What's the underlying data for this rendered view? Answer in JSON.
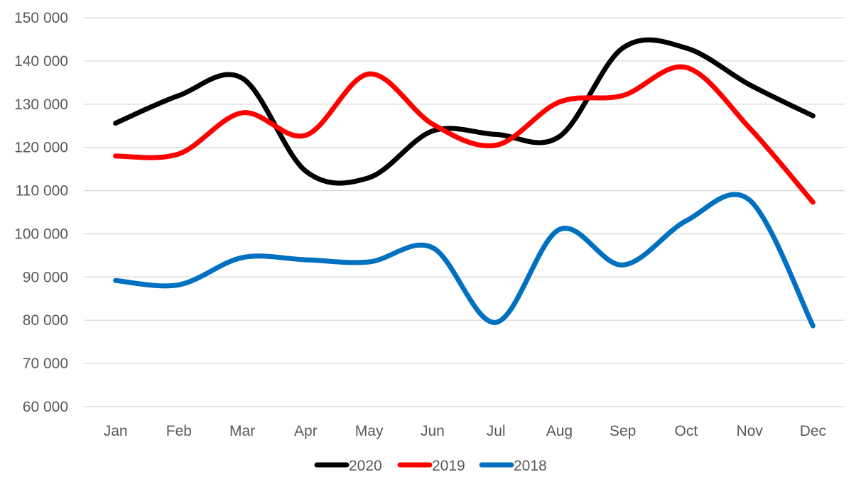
{
  "chart_data": {
    "type": "line",
    "smooth": true,
    "categories": [
      "Jan",
      "Feb",
      "Mar",
      "Apr",
      "May",
      "Jun",
      "Jul",
      "Aug",
      "Sep",
      "Oct",
      "Nov",
      "Dec"
    ],
    "ylim": [
      60000,
      150000
    ],
    "yticks": [
      60000,
      70000,
      80000,
      90000,
      100000,
      110000,
      120000,
      130000,
      140000,
      150000
    ],
    "ytick_labels": [
      "60 000",
      "70 000",
      "80 000",
      "90 000",
      "100 000",
      "110 000",
      "120 000",
      "130 000",
      "140 000",
      "150 000"
    ],
    "grid": true,
    "legend_position": "bottom",
    "series": [
      {
        "name": "2020",
        "color": "#000000",
        "values": [
          125600,
          132000,
          136000,
          114500,
          113000,
          123800,
          123000,
          122500,
          143000,
          143000,
          134500,
          127300
        ]
      },
      {
        "name": "2019",
        "color": "#ff0000",
        "values": [
          118000,
          118500,
          128000,
          122800,
          137000,
          125400,
          120500,
          130500,
          132000,
          138500,
          124500,
          107300
        ]
      },
      {
        "name": "2018",
        "color": "#0070c0",
        "values": [
          89200,
          88200,
          94500,
          94000,
          93500,
          96800,
          79500,
          101000,
          92800,
          103000,
          107800,
          78700
        ]
      }
    ]
  }
}
